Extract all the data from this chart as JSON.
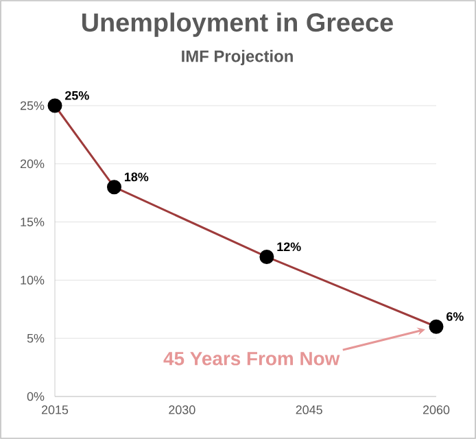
{
  "chart_data": {
    "type": "line",
    "title": "Unemployment in Greece",
    "subtitle": "IMF Projection",
    "x": [
      2015,
      2022,
      2040,
      2060
    ],
    "series": [
      {
        "color": "#9e3b3b",
        "values": [
          25,
          18,
          12,
          6
        ],
        "value_labels": [
          "25%",
          "18%",
          "12%",
          "6%"
        ]
      }
    ],
    "xlim": [
      2015,
      2060
    ],
    "xticks": [
      2015,
      2030,
      2045,
      2060
    ],
    "ylim": [
      0,
      25
    ],
    "yticks": [
      {
        "value": 0,
        "label": "0%"
      },
      {
        "value": 5,
        "label": "5%"
      },
      {
        "value": 10,
        "label": "10%"
      },
      {
        "value": 15,
        "label": "15%"
      },
      {
        "value": 20,
        "label": "20%"
      },
      {
        "value": 25,
        "label": "25%"
      }
    ],
    "grid": "y",
    "marker": "circle",
    "line_style": "solid",
    "annotations": [
      "45 Years From Now"
    ]
  }
}
